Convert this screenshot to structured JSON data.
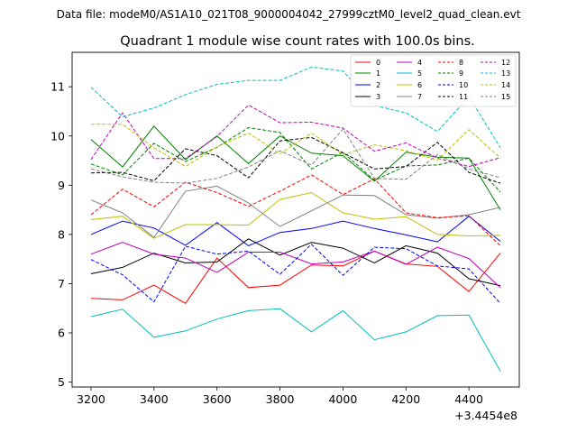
{
  "figure": {
    "suptitle": "Data file: modeM0/AS1A10_021T08_9000004042_27999cztM0_level2_quad_clean.evt"
  },
  "chart_data": {
    "type": "line",
    "title": "Quadrant 1 module wise count rates with 100.0s bins.",
    "xlabel": "",
    "ylabel": "",
    "x_offset_label": "+3.4454e8",
    "x_ticks": [
      3200,
      3400,
      3600,
      3800,
      4000,
      4200,
      4400
    ],
    "y_ticks": [
      5,
      6,
      7,
      8,
      9,
      10,
      11
    ],
    "xlim": [
      3140,
      4560
    ],
    "ylim": [
      4.9,
      11.7
    ],
    "grid": false,
    "legend": {
      "placement": "upper right",
      "columns": 4
    },
    "x": [
      3200,
      3300,
      3400,
      3500,
      3600,
      3700,
      3800,
      3900,
      4000,
      4100,
      4200,
      4300,
      4400,
      4500
    ],
    "series": [
      {
        "name": "0",
        "color": "#ff0000",
        "dash": "solid",
        "values": [
          6.7,
          6.67,
          6.97,
          6.6,
          7.52,
          6.92,
          6.97,
          7.38,
          7.36,
          7.66,
          7.4,
          7.35,
          6.84,
          7.62
        ]
      },
      {
        "name": "1",
        "color": "#008000",
        "dash": "solid",
        "values": [
          9.93,
          9.37,
          10.2,
          9.52,
          10.0,
          9.44,
          10.0,
          9.65,
          9.6,
          9.08,
          9.67,
          9.57,
          9.55,
          8.5
        ]
      },
      {
        "name": "2",
        "color": "#0000ff",
        "dash": "solid",
        "values": [
          8.0,
          8.27,
          8.13,
          7.78,
          8.24,
          7.77,
          8.04,
          8.12,
          8.27,
          8.12,
          7.99,
          7.85,
          8.37,
          7.86
        ]
      },
      {
        "name": "3",
        "color": "#000000",
        "dash": "solid",
        "values": [
          7.2,
          7.33,
          7.62,
          7.42,
          7.44,
          7.91,
          7.58,
          7.84,
          7.72,
          7.42,
          7.77,
          7.62,
          7.1,
          6.96
        ]
      },
      {
        "name": "4",
        "color": "#bf00bf",
        "dash": "solid",
        "values": [
          7.6,
          7.84,
          7.6,
          7.52,
          7.23,
          7.64,
          7.64,
          7.4,
          7.44,
          7.66,
          7.39,
          7.74,
          7.51,
          6.92
        ]
      },
      {
        "name": "5",
        "color": "#00bfbf",
        "dash": "solid",
        "values": [
          6.33,
          6.48,
          5.91,
          6.04,
          6.28,
          6.45,
          6.49,
          6.02,
          6.45,
          5.86,
          6.02,
          6.35,
          6.36,
          5.22
        ]
      },
      {
        "name": "6",
        "color": "#bfbf00",
        "dash": "solid",
        "values": [
          8.3,
          8.37,
          7.92,
          8.2,
          8.2,
          8.19,
          8.71,
          8.85,
          8.44,
          8.31,
          8.36,
          8.0,
          7.97,
          7.98
        ]
      },
      {
        "name": "7",
        "color": "#808080",
        "dash": "solid",
        "values": [
          8.7,
          8.44,
          7.94,
          8.88,
          8.98,
          8.64,
          8.16,
          8.48,
          8.8,
          8.79,
          8.4,
          8.33,
          8.4,
          8.55
        ]
      },
      {
        "name": "8",
        "color": "#ff0000",
        "dash": "dashed",
        "values": [
          8.4,
          8.92,
          8.56,
          9.06,
          8.85,
          8.57,
          8.88,
          9.21,
          8.81,
          9.13,
          8.44,
          8.34,
          8.38,
          7.77
        ]
      },
      {
        "name": "9",
        "color": "#008000",
        "dash": "dashed",
        "values": [
          9.43,
          9.21,
          9.85,
          9.48,
          9.77,
          10.17,
          10.07,
          9.33,
          9.67,
          9.1,
          9.39,
          9.41,
          9.55,
          8.86
        ]
      },
      {
        "name": "10",
        "color": "#0000ff",
        "dash": "dashed",
        "values": [
          7.49,
          7.18,
          6.63,
          7.76,
          7.6,
          7.66,
          7.19,
          7.8,
          7.17,
          7.74,
          7.71,
          7.36,
          7.3,
          6.6
        ]
      },
      {
        "name": "11",
        "color": "#000000",
        "dash": "dashed",
        "values": [
          9.25,
          9.26,
          9.09,
          9.74,
          9.6,
          9.15,
          9.9,
          9.97,
          9.66,
          9.33,
          9.38,
          9.87,
          9.26,
          9.04
        ]
      },
      {
        "name": "12",
        "color": "#bf00bf",
        "dash": "dashed",
        "values": [
          9.52,
          10.47,
          9.54,
          9.54,
          9.99,
          10.63,
          10.27,
          10.28,
          10.16,
          9.69,
          9.86,
          9.55,
          9.38,
          9.56
        ]
      },
      {
        "name": "13",
        "color": "#00bfbf",
        "dash": "dashed",
        "values": [
          10.99,
          10.39,
          10.57,
          10.84,
          11.05,
          11.13,
          11.13,
          11.4,
          11.32,
          10.62,
          10.47,
          10.09,
          10.8,
          9.76
        ]
      },
      {
        "name": "14",
        "color": "#bfbf00",
        "dash": "dashed",
        "values": [
          10.24,
          10.24,
          9.76,
          9.38,
          9.78,
          10.06,
          9.64,
          10.06,
          9.62,
          9.82,
          9.7,
          9.51,
          10.13,
          9.55
        ]
      },
      {
        "name": "15",
        "color": "#808080",
        "dash": "dashed",
        "values": [
          9.33,
          9.17,
          9.06,
          9.04,
          9.14,
          9.37,
          9.7,
          9.41,
          10.14,
          9.14,
          9.12,
          9.62,
          9.33,
          9.15
        ]
      }
    ]
  }
}
